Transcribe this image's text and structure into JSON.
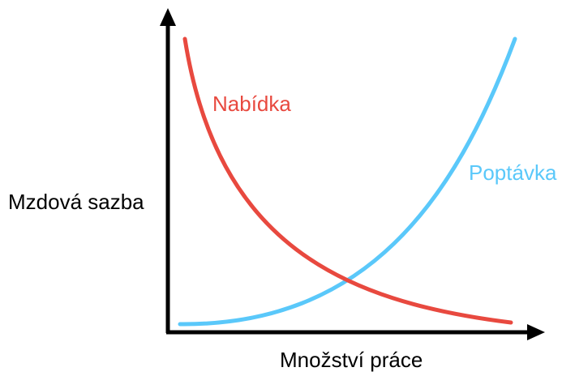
{
  "curves": {
    "supply": "Nabídka",
    "demand": "Poptávka"
  },
  "axes": {
    "y_label": "Mzdová sazba",
    "x_label": "Množství práce"
  }
}
